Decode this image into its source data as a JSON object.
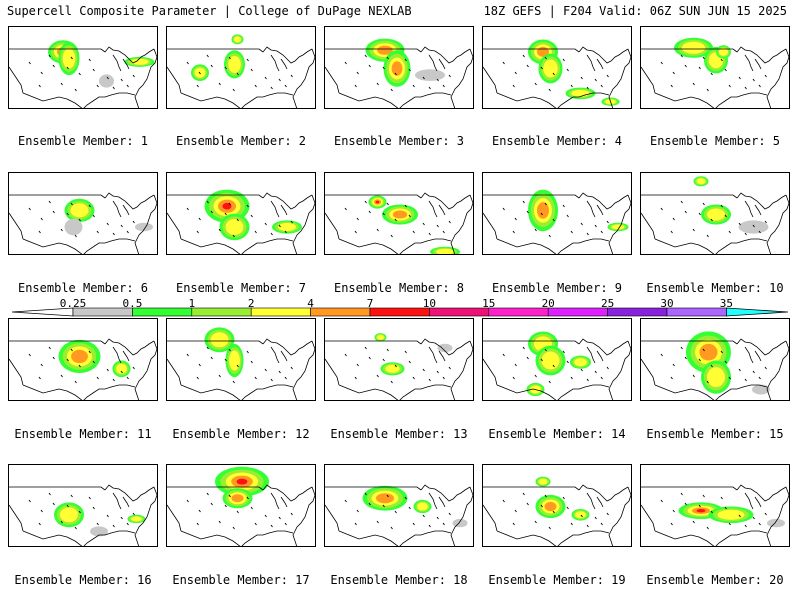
{
  "header": {
    "left": "Supercell Composite Parameter | College of DuPage NEXLAB",
    "right": "18Z GEFS | F204 Valid: 06Z SUN JUN 15 2025"
  },
  "member_label_prefix": "Ensemble Member:",
  "colorbar": {
    "ticks": [
      "0.25",
      "0.5",
      "1",
      "2",
      "4",
      "7",
      "10",
      "15",
      "20",
      "25",
      "30",
      "35"
    ],
    "colors": [
      "#c8c8c8",
      "#33ff33",
      "#99ee33",
      "#ffff33",
      "#ff9922",
      "#ff1111",
      "#ee1177",
      "#ff22cc",
      "#dd22ff",
      "#8a22dd",
      "#aa66ff",
      "#22ffff"
    ]
  },
  "members": [
    {
      "id": "1",
      "blobs": [
        [
          0.36,
          0.3,
          0.1,
          0.14,
          3
        ],
        [
          0.4,
          0.38,
          0.07,
          0.2,
          1
        ],
        [
          0.65,
          0.65,
          0.05,
          0.08,
          0
        ],
        [
          0.87,
          0.42,
          0.1,
          0.06,
          1
        ]
      ]
    },
    {
      "id": "2",
      "blobs": [
        [
          0.47,
          0.15,
          0.04,
          0.06,
          1
        ],
        [
          0.45,
          0.45,
          0.07,
          0.17,
          1
        ],
        [
          0.22,
          0.55,
          0.06,
          0.1,
          1
        ]
      ]
    },
    {
      "id": "3",
      "blobs": [
        [
          0.4,
          0.28,
          0.13,
          0.14,
          2
        ],
        [
          0.48,
          0.5,
          0.09,
          0.22,
          2
        ],
        [
          0.7,
          0.58,
          0.1,
          0.07,
          0
        ]
      ]
    },
    {
      "id": "4",
      "blobs": [
        [
          0.4,
          0.3,
          0.1,
          0.15,
          2
        ],
        [
          0.45,
          0.5,
          0.08,
          0.18,
          1
        ],
        [
          0.65,
          0.8,
          0.1,
          0.07,
          1
        ],
        [
          0.85,
          0.9,
          0.06,
          0.05,
          1
        ]
      ]
    },
    {
      "id": "5",
      "blobs": [
        [
          0.35,
          0.25,
          0.13,
          0.12,
          1
        ],
        [
          0.5,
          0.4,
          0.08,
          0.16,
          1
        ],
        [
          0.55,
          0.3,
          0.05,
          0.08,
          1
        ]
      ]
    },
    {
      "id": "6",
      "blobs": [
        [
          0.47,
          0.45,
          0.1,
          0.14,
          1
        ],
        [
          0.43,
          0.65,
          0.06,
          0.1,
          0
        ],
        [
          0.9,
          0.65,
          0.06,
          0.05,
          0
        ]
      ]
    },
    {
      "id": "7",
      "blobs": [
        [
          0.4,
          0.4,
          0.15,
          0.2,
          3
        ],
        [
          0.45,
          0.65,
          0.1,
          0.16,
          1
        ],
        [
          0.8,
          0.65,
          0.1,
          0.08,
          1
        ]
      ]
    },
    {
      "id": "8",
      "blobs": [
        [
          0.35,
          0.35,
          0.06,
          0.08,
          3
        ],
        [
          0.5,
          0.5,
          0.12,
          0.12,
          2
        ],
        [
          0.8,
          0.95,
          0.1,
          0.06,
          1
        ]
      ]
    },
    {
      "id": "9",
      "blobs": [
        [
          0.4,
          0.45,
          0.1,
          0.25,
          2
        ],
        [
          0.9,
          0.65,
          0.07,
          0.05,
          1
        ]
      ]
    },
    {
      "id": "10",
      "blobs": [
        [
          0.4,
          0.1,
          0.05,
          0.06,
          1
        ],
        [
          0.5,
          0.5,
          0.1,
          0.12,
          1
        ],
        [
          0.75,
          0.65,
          0.1,
          0.08,
          0
        ]
      ]
    },
    {
      "id": "11",
      "blobs": [
        [
          0.47,
          0.45,
          0.14,
          0.2,
          2
        ],
        [
          0.75,
          0.6,
          0.06,
          0.1,
          1
        ]
      ]
    },
    {
      "id": "12",
      "blobs": [
        [
          0.35,
          0.25,
          0.1,
          0.15,
          1
        ],
        [
          0.45,
          0.5,
          0.06,
          0.2,
          1
        ]
      ]
    },
    {
      "id": "13",
      "blobs": [
        [
          0.37,
          0.22,
          0.04,
          0.05,
          1
        ],
        [
          0.45,
          0.6,
          0.08,
          0.08,
          1
        ],
        [
          0.8,
          0.35,
          0.05,
          0.05,
          0
        ]
      ]
    },
    {
      "id": "14",
      "blobs": [
        [
          0.4,
          0.3,
          0.1,
          0.15,
          1
        ],
        [
          0.45,
          0.5,
          0.1,
          0.18,
          1
        ],
        [
          0.65,
          0.52,
          0.07,
          0.08,
          1
        ],
        [
          0.35,
          0.85,
          0.06,
          0.08,
          1
        ]
      ]
    },
    {
      "id": "15",
      "blobs": [
        [
          0.45,
          0.4,
          0.15,
          0.25,
          2
        ],
        [
          0.5,
          0.7,
          0.1,
          0.2,
          1
        ],
        [
          0.8,
          0.85,
          0.06,
          0.06,
          0
        ]
      ]
    },
    {
      "id": "16",
      "blobs": [
        [
          0.4,
          0.6,
          0.1,
          0.15,
          1
        ],
        [
          0.85,
          0.65,
          0.06,
          0.05,
          1
        ],
        [
          0.6,
          0.8,
          0.06,
          0.06,
          0
        ]
      ]
    },
    {
      "id": "17",
      "blobs": [
        [
          0.5,
          0.2,
          0.18,
          0.18,
          3
        ],
        [
          0.47,
          0.4,
          0.1,
          0.12,
          2
        ]
      ]
    },
    {
      "id": "18",
      "blobs": [
        [
          0.4,
          0.4,
          0.15,
          0.15,
          2
        ],
        [
          0.65,
          0.5,
          0.06,
          0.08,
          1
        ],
        [
          0.9,
          0.7,
          0.05,
          0.05,
          0
        ]
      ]
    },
    {
      "id": "19",
      "blobs": [
        [
          0.4,
          0.2,
          0.05,
          0.06,
          1
        ],
        [
          0.45,
          0.5,
          0.1,
          0.14,
          2
        ],
        [
          0.65,
          0.6,
          0.06,
          0.07,
          1
        ]
      ]
    },
    {
      "id": "20",
      "blobs": [
        [
          0.4,
          0.55,
          0.15,
          0.1,
          3
        ],
        [
          0.6,
          0.6,
          0.15,
          0.1,
          1
        ],
        [
          0.9,
          0.7,
          0.06,
          0.05,
          0
        ]
      ]
    }
  ]
}
